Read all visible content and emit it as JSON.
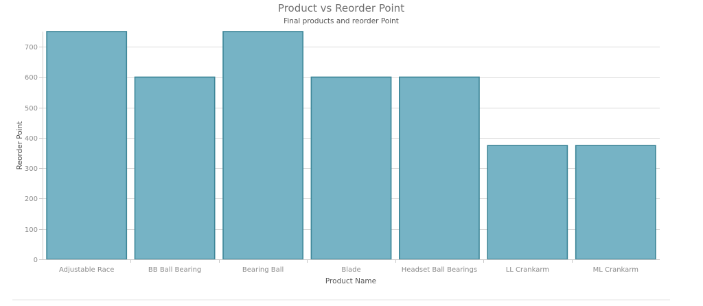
{
  "chart_data": {
    "type": "bar",
    "title": "Product vs Reorder Point",
    "subtitle": "Final products and reorder Point",
    "xlabel": "Product Name",
    "ylabel": "Reorder Point",
    "categories": [
      "Adjustable Race",
      "BB Ball Bearing",
      "Bearing Ball",
      "Blade",
      "Headset Ball Bearings",
      "LL Crankarm",
      "ML Crankarm"
    ],
    "series": [
      {
        "values": [
          750,
          600,
          750,
          600,
          600,
          375,
          375
        ]
      }
    ],
    "ylim": [
      0,
      750
    ],
    "yticks": [
      0,
      100,
      200,
      300,
      400,
      500,
      600,
      700
    ],
    "grid": true,
    "legend": "none",
    "colors": {
      "bar_fill": "#76b3c5",
      "bar_stroke": "#3c8597"
    }
  }
}
